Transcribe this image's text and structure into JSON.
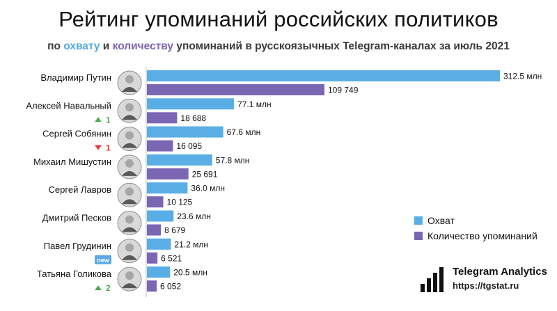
{
  "header": {
    "title": "Рейтинг упоминаний российских политиков",
    "subtitle_pre": "по ",
    "subtitle_reach": "охвату",
    "subtitle_and": " и ",
    "subtitle_count": "количеству",
    "subtitle_post": " упоминаний в русскоязычных Telegram-каналах за июль 2021"
  },
  "colors": {
    "reach": "#5aaee6",
    "count": "#7b66b4",
    "up": "#4caf50",
    "down": "#e53935",
    "new_badge": "#5aa9e6"
  },
  "chart_data": {
    "type": "bar",
    "orientation": "horizontal",
    "categories": [
      "Владимир Путин",
      "Алексей Навальный",
      "Сергей Собянин",
      "Михаил Мишустин",
      "Сергей Лавров",
      "Дмитрий Песков",
      "Павел Грудинин",
      "Татьяна Голикова"
    ],
    "series": [
      {
        "name": "Охват",
        "values": [
          312.5,
          77.1,
          67.6,
          57.8,
          36.0,
          23.6,
          21.2,
          20.5
        ],
        "labels": [
          "312.5 млн",
          "77.1 млн",
          "67.6 млн",
          "57.8 млн",
          "36.0 млн",
          "23.6 млн",
          "21.2 млн",
          "20.5 млн"
        ]
      },
      {
        "name": "Количество упоминаний",
        "values": [
          109749,
          18688,
          16095,
          25691,
          10125,
          8679,
          6521,
          6052
        ],
        "labels": [
          "109 749",
          "18 688",
          "16 095",
          "25 691",
          "10 125",
          "8 679",
          "6 521",
          "6 052"
        ]
      }
    ],
    "rank_changes": [
      {
        "type": "none",
        "text": ""
      },
      {
        "type": "up",
        "text": "1"
      },
      {
        "type": "down",
        "text": "1"
      },
      {
        "type": "none",
        "text": ""
      },
      {
        "type": "none",
        "text": ""
      },
      {
        "type": "none",
        "text": ""
      },
      {
        "type": "new",
        "text": "new"
      },
      {
        "type": "up",
        "text": "2"
      }
    ],
    "legend_position": "right"
  },
  "brand": {
    "name": "Telegram Analytics",
    "url": "https://tgstat.ru",
    "icon": "bar-chart-logo-icon"
  }
}
